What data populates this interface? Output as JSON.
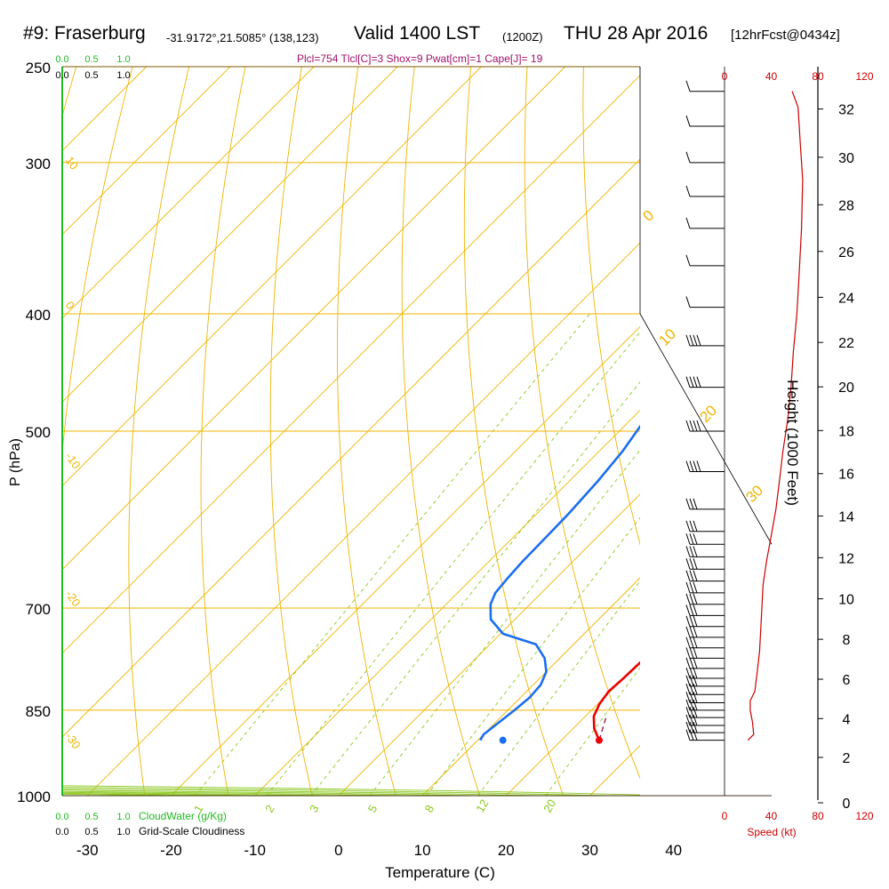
{
  "header": {
    "station": "#9: Fraserburg",
    "coords": "-31.9172°,21.5085° (138,123)",
    "valid": "Valid 1400 LST",
    "zulu": "(1200Z)",
    "date": "THU 28 Apr 2016",
    "forecast": "[12hrFcst@0434z]",
    "params": "Plcl=754 Tlcl[C]=3 Shox=9 Pwat[cm]=1 Cape[J]= 19"
  },
  "colors": {
    "temperature": "#ee0000",
    "dewpoint": "#1a6ef0",
    "isobar": "#f0b400",
    "isotherm": "#f0b400",
    "dry_adiabat": "#f0b400",
    "moist_adiabat": "#8cc820",
    "mixing_ratio": "#8cc820",
    "cloud_water": "#22bb22",
    "parcel": "#880044",
    "wind_speed": "#cc0000",
    "params_text": "#a0106a"
  },
  "chart_data": {
    "type": "line",
    "title": "#9: Fraserburg",
    "xlabel": "Temperature (C)",
    "ylabel": "P (hPa)",
    "x_ticks": [
      "-30",
      "-20",
      "-10",
      "0",
      "10",
      "20",
      "30",
      "40"
    ],
    "y_ticks": [
      "250",
      "300",
      "400",
      "500",
      "700",
      "850",
      "1000"
    ],
    "xlim": [
      -33,
      36
    ],
    "ylim": [
      1000,
      250
    ],
    "series": [
      {
        "key": "temperature",
        "points": [
          [
            24.5,
            900
          ],
          [
            22.5,
            880
          ],
          [
            21,
            860
          ],
          [
            20.2,
            840
          ],
          [
            19.8,
            820
          ],
          [
            20,
            800
          ],
          [
            20.1,
            780
          ],
          [
            20.3,
            760
          ],
          [
            20.6,
            740
          ],
          [
            20.9,
            720
          ],
          [
            21.2,
            700
          ],
          [
            20.9,
            680
          ],
          [
            20,
            660
          ],
          [
            19.1,
            640
          ],
          [
            17.9,
            610
          ],
          [
            16.6,
            580
          ],
          [
            15.3,
            550
          ],
          [
            14.3,
            520
          ],
          [
            13.4,
            490
          ],
          [
            12.6,
            460
          ],
          [
            11.8,
            430
          ],
          [
            11.2,
            410
          ],
          [
            10.8,
            395
          ],
          [
            9.5,
            370
          ],
          [
            7.9,
            345
          ],
          [
            6.3,
            320
          ],
          [
            4.9,
            300
          ],
          [
            3.4,
            280
          ],
          [
            1.6,
            262
          ]
        ]
      },
      {
        "key": "dewpoint",
        "points": [
          [
            10.3,
            900
          ],
          [
            10,
            890
          ],
          [
            10.3,
            875
          ],
          [
            10.8,
            850
          ],
          [
            11.1,
            830
          ],
          [
            10.9,
            810
          ],
          [
            10,
            790
          ],
          [
            8.2,
            770
          ],
          [
            5.5,
            750
          ],
          [
            0.3,
            735
          ],
          [
            -2.9,
            715
          ],
          [
            -4.7,
            695
          ],
          [
            -5.5,
            680
          ],
          [
            -5.8,
            660
          ],
          [
            -6,
            640
          ],
          [
            -6.1,
            610
          ],
          [
            -6.2,
            585
          ],
          [
            -6.6,
            550
          ],
          [
            -7.2,
            520
          ],
          [
            -8.1,
            495
          ],
          [
            -9.5,
            470
          ],
          [
            -11.2,
            445
          ],
          [
            -13.3,
            420
          ],
          [
            -15.6,
            395
          ],
          [
            -17.5,
            370
          ],
          [
            -18.2,
            350
          ],
          [
            -18.4,
            330
          ],
          [
            -17.5,
            310
          ],
          [
            -16.2,
            295
          ],
          [
            -14.6,
            280
          ],
          [
            -12.6,
            262
          ]
        ]
      }
    ],
    "parcel": [
      [
        24.5,
        900
      ],
      [
        22.5,
        860
      ]
    ],
    "surface_dewpoint_marker": [
      13,
      900
    ],
    "height_axis": {
      "title": "Height (1000 Feet)",
      "ticks": [
        "0",
        "2",
        "4",
        "6",
        "8",
        "10",
        "12",
        "14",
        "16",
        "18",
        "20",
        "22",
        "24",
        "26",
        "28",
        "30",
        "32"
      ]
    },
    "wind_speed_axis": {
      "title": "Speed (kt)",
      "ticks": [
        "0",
        "40",
        "80",
        "120"
      ],
      "xlim": [
        0,
        120
      ]
    },
    "wind_speed_profile_kt": [
      [
        20,
        900
      ],
      [
        25,
        890
      ],
      [
        24,
        870
      ],
      [
        22,
        850
      ],
      [
        22,
        835
      ],
      [
        26,
        820
      ],
      [
        28,
        790
      ],
      [
        30,
        760
      ],
      [
        31,
        730
      ],
      [
        32,
        700
      ],
      [
        33,
        670
      ],
      [
        36,
        640
      ],
      [
        40,
        610
      ],
      [
        44,
        580
      ],
      [
        47,
        550
      ],
      [
        50,
        520
      ],
      [
        54,
        490
      ],
      [
        57,
        460
      ],
      [
        59,
        430
      ],
      [
        62,
        400
      ],
      [
        64,
        370
      ],
      [
        66,
        340
      ],
      [
        67,
        310
      ],
      [
        65,
        290
      ],
      [
        63,
        270
      ],
      [
        58,
        262
      ]
    ],
    "wind_barb_levels_hpa": [
      262,
      280,
      300,
      320,
      340,
      365,
      395,
      425,
      460,
      500,
      540,
      580,
      605,
      620,
      635,
      650,
      665,
      680,
      695,
      710,
      725,
      740,
      755,
      770,
      785,
      800,
      812,
      825,
      838,
      850,
      862,
      875,
      887,
      900
    ],
    "mixing_ratio_labels": [
      "1",
      "2",
      "3",
      "5",
      "8",
      "12",
      "20"
    ],
    "mixing_ratio_values_gkg": [
      1,
      2,
      3,
      5,
      8,
      12,
      20
    ],
    "isotherm_labels_left": [
      "10",
      "0",
      "-10",
      "-20",
      "-30"
    ],
    "isotherm_labels_right": [
      "0",
      "10",
      "20",
      "30"
    ],
    "cloud_water": {
      "label": "CloudWater (g/Kg)",
      "ticks": [
        "0.0",
        "0.5",
        "1.0"
      ]
    },
    "cloudiness": {
      "label": "Grid-Scale Cloudiness",
      "ticks": [
        "0.0",
        "0.5",
        "1.0"
      ]
    }
  }
}
